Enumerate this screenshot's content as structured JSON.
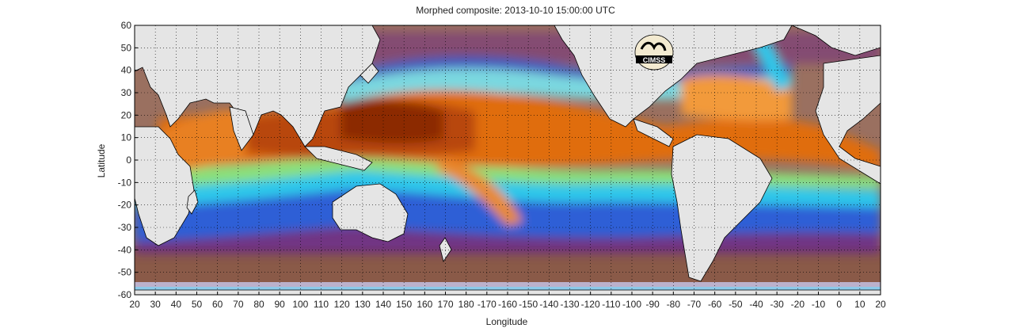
{
  "title": "Morphed composite: 2013-10-10 15:00:00 UTC",
  "logo_text": "CIMSS",
  "colors": {
    "land": "#e5e5e5",
    "coast": "#000000",
    "deep_orange": "#8c2a05",
    "orange": "#e06d10",
    "light_orange": "#f29a3a",
    "green": "#8ae07a",
    "cyan": "#2ec7ea",
    "blue": "#2d5fd6",
    "purple": "#6a2a8a",
    "brown": "#8a5a45",
    "pale": "#d8d8ee"
  },
  "chart_data": {
    "type": "heatmap",
    "title": "Morphed composite: 2013-10-10 15:00:00 UTC",
    "xlabel": "Longitude",
    "ylabel": "Latitude",
    "grid": true,
    "x_ticks": [
      "20",
      "30",
      "40",
      "50",
      "60",
      "70",
      "80",
      "90",
      "100",
      "110",
      "120",
      "130",
      "140",
      "150",
      "160",
      "170",
      "180",
      "-170",
      "-160",
      "-150",
      "-140",
      "-130",
      "-120",
      "-110",
      "-100",
      "-90",
      "-80",
      "-70",
      "-60",
      "-50",
      "-40",
      "-30",
      "-20",
      "-10",
      "0",
      "10",
      "20"
    ],
    "y_ticks": [
      "60",
      "50",
      "40",
      "30",
      "20",
      "10",
      "0",
      "-10",
      "-20",
      "-30",
      "-40",
      "-50",
      "-60"
    ],
    "xlim": [
      20,
      380
    ],
    "ylim": [
      -60,
      60
    ]
  }
}
